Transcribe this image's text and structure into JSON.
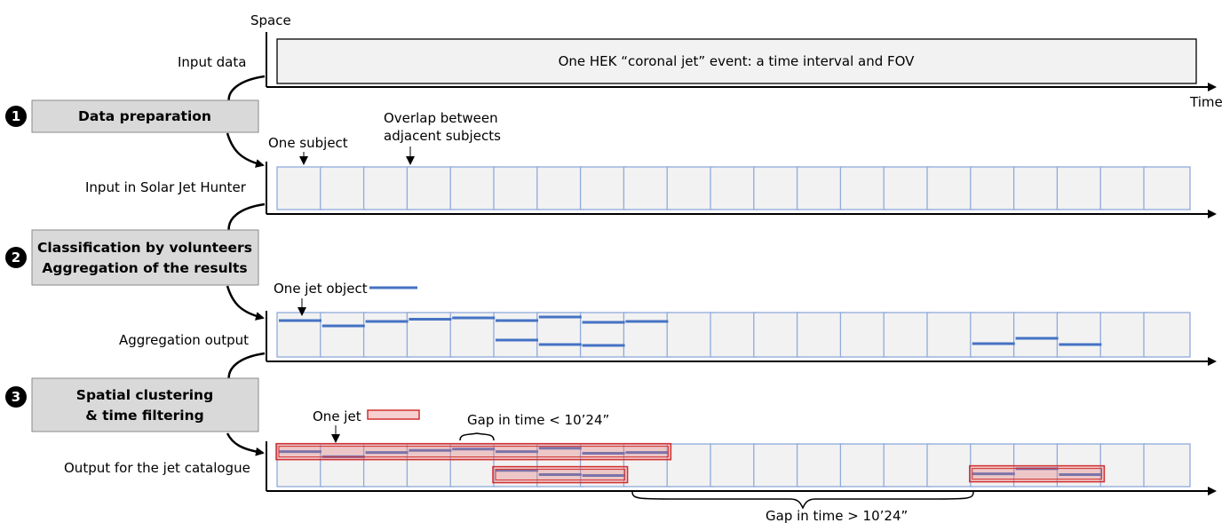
{
  "axes": {
    "space_label": "Space",
    "time_label": "Time"
  },
  "rows": {
    "input_data": "Input data",
    "input_solar_jet_hunter": "Input in Solar Jet Hunter",
    "aggregation_output": "Aggregation output",
    "output_jet_catalogue": "Output for the jet catalogue"
  },
  "steps": [
    {
      "number": "1",
      "lines": [
        "Data preparation"
      ]
    },
    {
      "number": "2",
      "lines": [
        "Classification by volunteers",
        "Aggregation of the results"
      ]
    },
    {
      "number": "3",
      "lines": [
        "Spatial clustering",
        "& time filtering"
      ]
    }
  ],
  "event_box_text": "One HEK “coronal jet” event: a time interval and FOV",
  "annotations": {
    "one_subject": "One subject",
    "overlap_line1": "Overlap between",
    "overlap_line2": "adjacent subjects",
    "one_jet_object": "One jet object",
    "one_jet": "One jet",
    "gap_small": "Gap in time < 10’24”",
    "gap_large": "Gap in time > 10’24”"
  },
  "subject_count": 21,
  "aggregation_jets": [
    {
      "subject": 0,
      "level": 0.18
    },
    {
      "subject": 1,
      "level": 0.3
    },
    {
      "subject": 2,
      "level": 0.2
    },
    {
      "subject": 3,
      "level": 0.15
    },
    {
      "subject": 4,
      "level": 0.12
    },
    {
      "subject": 5,
      "level": 0.18
    },
    {
      "subject": 5,
      "level": 0.62
    },
    {
      "subject": 6,
      "level": 0.1
    },
    {
      "subject": 6,
      "level": 0.72
    },
    {
      "subject": 7,
      "level": 0.22
    },
    {
      "subject": 7,
      "level": 0.74
    },
    {
      "subject": 8,
      "level": 0.2
    },
    {
      "subject": 16,
      "level": 0.7
    },
    {
      "subject": 17,
      "level": 0.58
    },
    {
      "subject": 18,
      "level": 0.72
    }
  ],
  "catalogue_jets": [
    {
      "first_subject": 0,
      "last_subject": 8,
      "level": 0.18
    },
    {
      "first_subject": 5,
      "last_subject": 7,
      "level": 0.72
    },
    {
      "first_subject": 16,
      "last_subject": 18,
      "level": 0.7
    }
  ],
  "colors": {
    "jet_line": "#4472c4",
    "jet_box": "#d23030",
    "subject_border": "#8faadc"
  }
}
